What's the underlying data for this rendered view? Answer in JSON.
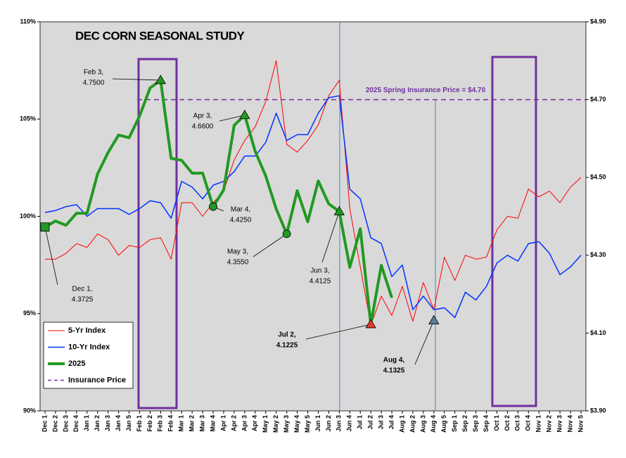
{
  "chart_data": {
    "type": "line",
    "title": "DEC CORN SEASONAL STUDY",
    "categories": [
      "Dec 1",
      "Dec 2",
      "Dec 3",
      "Dec 4",
      "Jan 1",
      "Jan 2",
      "Jan 3",
      "Jan 4",
      "Jan 5",
      "Feb 1",
      "Feb 2",
      "Feb 3",
      "Feb 4",
      "Mar 1",
      "Mar 2",
      "Mar 3",
      "Mar 4",
      "Apr 1",
      "Apr 2",
      "Apr 3",
      "Apr 4",
      "May 1",
      "May 2",
      "May 3",
      "May 4",
      "May 5",
      "Jun 1",
      "Jun 2",
      "Jun 3",
      "Jun 4",
      "Jul 1",
      "Jul 2",
      "Jul 3",
      "Jul 4",
      "Aug 1",
      "Aug 2",
      "Aug 3",
      "Aug 4",
      "Aug 5",
      "Sep 1",
      "Sep 2",
      "Sep 3",
      "Sep 4",
      "Oct 1",
      "Oct 2",
      "Oct 3",
      "Oct 4",
      "Nov 1",
      "Nov 2",
      "Nov 3",
      "Nov 4",
      "Nov 5"
    ],
    "series": [
      {
        "name": "5-Yr Index",
        "color": "#ff0000",
        "width": 1,
        "axis": "y",
        "values": [
          97.8,
          97.8,
          98.1,
          98.6,
          98.4,
          99.1,
          98.8,
          98.0,
          98.5,
          98.4,
          98.8,
          98.9,
          97.8,
          100.7,
          100.7,
          100.0,
          100.7,
          101.3,
          102.9,
          103.9,
          104.6,
          105.9,
          108.0,
          103.7,
          103.3,
          103.9,
          104.7,
          106.2,
          107.0,
          100.4,
          97.4,
          94.4,
          95.9,
          94.9,
          96.4,
          94.6,
          96.6,
          95.2,
          97.9,
          96.7,
          98.0,
          97.8,
          97.9,
          99.3,
          100.0,
          99.9,
          101.4,
          101.0,
          101.3,
          100.7,
          101.5,
          102.0
        ]
      },
      {
        "name": "10-Yr Index",
        "color": "#0033ff",
        "width": 1.5,
        "axis": "y",
        "values": [
          100.2,
          100.3,
          100.5,
          100.6,
          100.0,
          100.4,
          100.4,
          100.4,
          100.1,
          100.4,
          100.8,
          100.7,
          99.9,
          101.8,
          101.5,
          100.9,
          101.6,
          101.8,
          102.3,
          103.1,
          103.1,
          103.8,
          105.3,
          103.9,
          104.2,
          104.2,
          105.3,
          106.1,
          106.2,
          101.4,
          100.9,
          98.9,
          98.6,
          96.9,
          97.5,
          95.2,
          95.9,
          95.2,
          95.3,
          94.8,
          96.1,
          95.7,
          96.4,
          97.6,
          98.0,
          97.7,
          98.6,
          98.7,
          98.1,
          97.0,
          97.4,
          98.0
        ]
      },
      {
        "name": "2025",
        "color": "#229922",
        "width": 4,
        "axis": "y2",
        "values": [
          4.3725,
          4.388,
          4.377,
          4.408,
          4.408,
          4.509,
          4.564,
          4.609,
          4.602,
          4.658,
          4.73,
          4.75,
          4.549,
          4.544,
          4.511,
          4.511,
          4.425,
          4.468,
          4.634,
          4.66,
          4.567,
          4.504,
          4.419,
          4.355,
          4.466,
          4.386,
          4.491,
          4.432,
          4.4125,
          4.269,
          4.368,
          4.1225,
          4.274,
          4.191,
          null,
          null,
          null,
          null,
          null,
          null,
          null,
          null,
          null,
          null,
          null,
          null,
          null,
          null,
          null,
          null,
          null,
          null
        ]
      }
    ],
    "reference_line": {
      "name": "Insurance Price",
      "value": 4.7,
      "label": "2025 Spring Insurance Price = $4.70",
      "color": "#7030a0",
      "axis": "y2"
    },
    "annotations": [
      {
        "x": "Dec 1",
        "value": 4.3725,
        "label": "Dec 1,",
        "value_label": "4.3725",
        "marker": "square",
        "color": "#229922"
      },
      {
        "x": "Feb 3",
        "value": 4.75,
        "label": "Feb 3,",
        "value_label": "4.7500",
        "marker": "triangle",
        "color": "#229922"
      },
      {
        "x": "Mar 4",
        "value": 4.425,
        "label": "Mar 4,",
        "value_label": "4.4250",
        "marker": "circle",
        "color": "#229922"
      },
      {
        "x": "Apr 3",
        "value": 4.66,
        "label": "Apr 3,",
        "value_label": "4.6600",
        "marker": "triangle",
        "color": "#229922"
      },
      {
        "x": "May 3",
        "value": 4.355,
        "label": "May 3,",
        "value_label": "4.3550",
        "marker": "circle",
        "color": "#229922"
      },
      {
        "x": "Jun 3",
        "value": 4.4125,
        "label": "Jun 3,",
        "value_label": "4.4125",
        "marker": "triangle",
        "color": "#229922"
      },
      {
        "x": "Jul 2",
        "value": 4.1225,
        "label": "Jul 2,",
        "value_label": "4.1225",
        "marker": "triangle",
        "color": "#e03a2a"
      },
      {
        "x": "Aug 4",
        "value": 4.1325,
        "label": "Aug 4,",
        "value_label": "4.1325",
        "marker": "triangle",
        "color": "#5b7f96"
      }
    ],
    "ylim": [
      90,
      110
    ],
    "yticks": [
      {
        "value": 90,
        "label": "90%"
      },
      {
        "value": 95,
        "label": "95%"
      },
      {
        "value": 100,
        "label": "100%"
      },
      {
        "value": 105,
        "label": "105%"
      },
      {
        "value": 110,
        "label": "110%"
      }
    ],
    "y2lim": [
      3.9,
      4.9
    ],
    "y2ticks": [
      {
        "value": 3.9,
        "label": "$3.90"
      },
      {
        "value": 4.1,
        "label": "$4.10"
      },
      {
        "value": 4.3,
        "label": "$4.30"
      },
      {
        "value": 4.5,
        "label": "$4.50"
      },
      {
        "value": 4.7,
        "label": "$4.70"
      },
      {
        "value": 4.9,
        "label": "$4.90"
      }
    ],
    "legend": "lower left"
  }
}
